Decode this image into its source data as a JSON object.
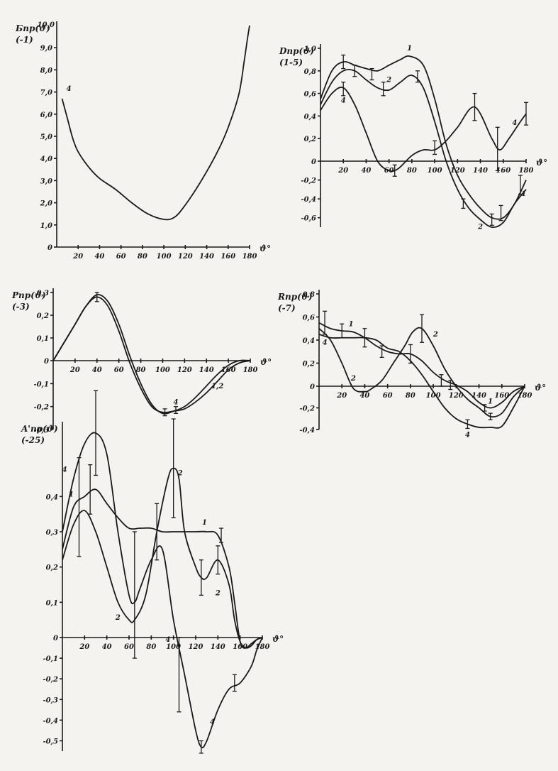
{
  "chart_data": [
    {
      "type": "line",
      "ylabel": "Бпр(ϑ)",
      "ylabel_note": "(-1)",
      "ymax_label": "10,0",
      "xlabel": "ϑ°",
      "x_ticks": [
        "20",
        "40",
        "60",
        "80",
        "100",
        "120",
        "140",
        "160",
        "180"
      ],
      "y_ticks": [
        "0",
        "1,0",
        "2,0",
        "3,0",
        "4,0",
        "5,0",
        "6,0",
        "7,0",
        "8,0",
        "9,0"
      ],
      "xlim": [
        0,
        180
      ],
      "ylim": [
        0,
        10
      ],
      "series": [
        {
          "name": "4",
          "x": [
            5,
            10,
            15,
            20,
            30,
            40,
            55,
            70,
            85,
            100,
            110,
            120,
            135,
            150,
            160,
            170,
            175,
            178,
            180
          ],
          "y": [
            6.7,
            5.8,
            4.9,
            4.3,
            3.6,
            3.1,
            2.6,
            2.0,
            1.5,
            1.25,
            1.35,
            1.9,
            3.0,
            4.3,
            5.4,
            6.9,
            8.4,
            9.4,
            10.0
          ]
        }
      ],
      "error_bars": []
    },
    {
      "type": "line",
      "ylabel": "Dпр(ϑ)",
      "ylabel_note": "(1-5)",
      "xlabel": "ϑ°",
      "x_ticks": [
        "20",
        "40",
        "60",
        "80",
        "100",
        "120",
        "140",
        "160",
        "180"
      ],
      "y_ticks": [
        "-0,6",
        "-0,4",
        "-0,2",
        "0",
        "0,2",
        "0,4",
        "0,6",
        "0,8",
        "1,0"
      ],
      "xlim": [
        0,
        180
      ],
      "ylim": [
        -0.7,
        1.0
      ],
      "series": [
        {
          "name": "1",
          "x": [
            0,
            10,
            20,
            30,
            40,
            50,
            60,
            70,
            78,
            90,
            100,
            110,
            120,
            130,
            140,
            150,
            160,
            170,
            180
          ],
          "y": [
            0.55,
            0.8,
            0.88,
            0.85,
            0.82,
            0.8,
            0.85,
            0.9,
            0.93,
            0.85,
            0.55,
            0.15,
            -0.15,
            -0.35,
            -0.5,
            -0.6,
            -0.6,
            -0.45,
            -0.2
          ]
        },
        {
          "name": "2",
          "x": [
            0,
            10,
            20,
            30,
            40,
            50,
            60,
            70,
            80,
            90,
            100,
            110,
            120,
            130,
            140,
            150,
            160,
            170,
            180
          ],
          "y": [
            0.5,
            0.7,
            0.8,
            0.8,
            0.72,
            0.65,
            0.63,
            0.7,
            0.76,
            0.65,
            0.35,
            0.0,
            -0.3,
            -0.5,
            -0.62,
            -0.7,
            -0.65,
            -0.45,
            -0.3
          ]
        },
        {
          "name": "4",
          "x": [
            0,
            10,
            20,
            30,
            40,
            50,
            60,
            68,
            80,
            90,
            100,
            110,
            120,
            135,
            150,
            157,
            165,
            175,
            180
          ],
          "y": [
            0.45,
            0.6,
            0.65,
            0.5,
            0.25,
            0.0,
            -0.1,
            -0.08,
            0.05,
            0.1,
            0.1,
            0.18,
            0.3,
            0.48,
            0.2,
            0.1,
            0.2,
            0.35,
            0.42
          ]
        }
      ],
      "error_bars": [
        {
          "x": 20,
          "y": 0.88,
          "e": 0.06
        },
        {
          "x": 30,
          "y": 0.8,
          "e": 0.05
        },
        {
          "x": 45,
          "y": 0.77,
          "e": 0.05
        },
        {
          "x": 55,
          "y": 0.64,
          "e": 0.06
        },
        {
          "x": 85,
          "y": 0.75,
          "e": 0.05
        },
        {
          "x": 20,
          "y": 0.64,
          "e": 0.06
        },
        {
          "x": 65,
          "y": -0.1,
          "e": 0.06
        },
        {
          "x": 100,
          "y": 0.12,
          "e": 0.06
        },
        {
          "x": 125,
          "y": -0.45,
          "e": 0.05
        },
        {
          "x": 135,
          "y": 0.48,
          "e": 0.12
        },
        {
          "x": 150,
          "y": -0.62,
          "e": 0.06
        },
        {
          "x": 155,
          "y": 0.1,
          "e": 0.2
        },
        {
          "x": 158,
          "y": -0.55,
          "e": 0.08
        },
        {
          "x": 175,
          "y": -0.25,
          "e": 0.1
        },
        {
          "x": 180,
          "y": 0.42,
          "e": 0.1
        }
      ],
      "curve_labels": [
        {
          "text": "1",
          "x": 78,
          "y": 0.98
        },
        {
          "text": "2",
          "x": 60,
          "y": 0.7
        },
        {
          "text": "4",
          "x": 20,
          "y": 0.52
        },
        {
          "text": "4",
          "x": 170,
          "y": 0.32
        },
        {
          "text": "2",
          "x": 140,
          "y": -0.72
        },
        {
          "text": "1",
          "x": 178,
          "y": -0.37
        }
      ]
    },
    {
      "type": "line",
      "ylabel": "Pпр(ϑ)",
      "ylabel_note": "(-3)",
      "xlabel": "ϑ°",
      "x_ticks": [
        "20",
        "40",
        "60",
        "80",
        "100",
        "120",
        "140",
        "160",
        "180"
      ],
      "y_ticks": [
        "-0,3",
        "-0,2",
        "-0,1",
        "0",
        "0,1",
        "0,2",
        "0,3"
      ],
      "xlim": [
        0,
        180
      ],
      "ylim": [
        -0.3,
        0.3
      ],
      "series": [
        {
          "name": "1,2",
          "x": [
            0,
            10,
            20,
            30,
            40,
            50,
            60,
            70,
            80,
            90,
            100,
            110,
            120,
            130,
            140,
            150,
            160,
            170,
            180
          ],
          "y": [
            0,
            0.08,
            0.16,
            0.24,
            0.29,
            0.26,
            0.16,
            0.02,
            -0.1,
            -0.19,
            -0.23,
            -0.22,
            -0.2,
            -0.16,
            -0.11,
            -0.06,
            -0.02,
            0,
            0
          ]
        },
        {
          "name": "4",
          "x": [
            0,
            10,
            20,
            30,
            40,
            50,
            60,
            70,
            80,
            90,
            100,
            110,
            120,
            130,
            140,
            150,
            160,
            170,
            180
          ],
          "y": [
            0,
            0.08,
            0.16,
            0.24,
            0.28,
            0.24,
            0.13,
            -0.01,
            -0.12,
            -0.2,
            -0.225,
            -0.22,
            -0.21,
            -0.18,
            -0.14,
            -0.09,
            -0.04,
            -0.01,
            0
          ]
        }
      ],
      "error_bars": [
        {
          "x": 40,
          "y": 0.28,
          "e": 0.02
        },
        {
          "x": 102,
          "y": -0.225,
          "e": 0.015
        },
        {
          "x": 112,
          "y": -0.215,
          "e": 0.015
        }
      ],
      "curve_labels": [
        {
          "text": "4",
          "x": 112,
          "y": -0.19
        },
        {
          "text": "1,2",
          "x": 150,
          "y": -0.12
        }
      ]
    },
    {
      "type": "line",
      "ylabel": "Rпр(ϑ)",
      "ylabel_note": "(-7)",
      "xlabel": "ϑ°",
      "x_ticks": [
        "20",
        "40",
        "60",
        "80",
        "100",
        "120",
        "140",
        "160",
        "180"
      ],
      "y_ticks": [
        "-0,4",
        "-0,2",
        "0",
        "0,2",
        "0,4",
        "0,6",
        "0,8"
      ],
      "xlim": [
        0,
        180
      ],
      "ylim": [
        -0.4,
        0.8
      ],
      "series": [
        {
          "name": "1",
          "x": [
            0,
            10,
            20,
            30,
            40,
            50,
            60,
            70,
            80,
            90,
            100,
            110,
            120,
            130,
            140,
            150,
            160,
            170,
            180
          ],
          "y": [
            0.55,
            0.5,
            0.48,
            0.47,
            0.42,
            0.35,
            0.3,
            0.28,
            0.28,
            0.22,
            0.12,
            0.05,
            0.01,
            -0.05,
            -0.15,
            -0.2,
            -0.15,
            -0.05,
            0
          ]
        },
        {
          "name": "2",
          "x": [
            0,
            10,
            20,
            30,
            40,
            45,
            55,
            65,
            75,
            82,
            90,
            100,
            110,
            120,
            130,
            140,
            150,
            160,
            170,
            180
          ],
          "y": [
            0.5,
            0.4,
            0.2,
            -0.02,
            -0.05,
            -0.03,
            0.05,
            0.2,
            0.35,
            0.47,
            0.5,
            0.35,
            0.15,
            0.0,
            -0.12,
            -0.2,
            -0.28,
            -0.25,
            -0.1,
            0
          ]
        },
        {
          "name": "4",
          "x": [
            0,
            10,
            20,
            30,
            40,
            50,
            60,
            70,
            80,
            90,
            100,
            110,
            120,
            130,
            140,
            150,
            160,
            170,
            180
          ],
          "y": [
            0.45,
            0.42,
            0.42,
            0.42,
            0.42,
            0.4,
            0.33,
            0.3,
            0.22,
            0.1,
            -0.05,
            -0.2,
            -0.3,
            -0.35,
            -0.38,
            -0.38,
            -0.37,
            -0.2,
            0
          ]
        }
      ],
      "error_bars": [
        {
          "x": 5,
          "y": 0.55,
          "e": 0.1
        },
        {
          "x": 20,
          "y": 0.48,
          "e": 0.06
        },
        {
          "x": 40,
          "y": 0.42,
          "e": 0.08
        },
        {
          "x": 55,
          "y": 0.3,
          "e": 0.05
        },
        {
          "x": 80,
          "y": 0.28,
          "e": 0.08
        },
        {
          "x": 90,
          "y": 0.5,
          "e": 0.12
        },
        {
          "x": 107,
          "y": 0.05,
          "e": 0.05
        },
        {
          "x": 115,
          "y": 0.01,
          "e": 0.04
        },
        {
          "x": 130,
          "y": -0.35,
          "e": 0.04
        },
        {
          "x": 145,
          "y": -0.2,
          "e": 0.03
        },
        {
          "x": 150,
          "y": -0.28,
          "e": 0.03
        }
      ],
      "curve_labels": [
        {
          "text": "1",
          "x": 28,
          "y": 0.52
        },
        {
          "text": "2",
          "x": 30,
          "y": 0.05
        },
        {
          "text": "4",
          "x": 5,
          "y": 0.36
        },
        {
          "text": "2",
          "x": 102,
          "y": 0.43
        },
        {
          "text": "1",
          "x": 150,
          "y": -0.16
        },
        {
          "text": "4",
          "x": 130,
          "y": -0.47
        }
      ]
    },
    {
      "type": "line",
      "ylabel": "A'пр(ϑ)",
      "ylabel_note": "(-25)",
      "xlabel": "ϑ°",
      "x_ticks": [
        "20",
        "40",
        "60",
        "80",
        "100",
        "120",
        "140",
        "160",
        "180"
      ],
      "y_ticks": [
        "-0,5",
        "-0,4",
        "-0,3",
        "-0,2",
        "-0,1",
        "0",
        "0,1",
        "0,2",
        "0,3",
        "0,4"
      ],
      "xlim": [
        0,
        180
      ],
      "ylim": [
        -0.55,
        0.6
      ],
      "series": [
        {
          "name": "1",
          "x": [
            0,
            10,
            20,
            30,
            40,
            50,
            60,
            70,
            80,
            90,
            100,
            110,
            120,
            130,
            140,
            150,
            155,
            160,
            165,
            170,
            175,
            180
          ],
          "y": [
            0.25,
            0.37,
            0.4,
            0.42,
            0.38,
            0.34,
            0.31,
            0.31,
            0.31,
            0.3,
            0.3,
            0.3,
            0.3,
            0.3,
            0.29,
            0.2,
            0.1,
            -0.02,
            -0.05,
            -0.03,
            -0.01,
            0
          ]
        },
        {
          "name": "2",
          "x": [
            0,
            10,
            20,
            30,
            40,
            50,
            60,
            65,
            75,
            85,
            95,
            100,
            105,
            110,
            120,
            125,
            130,
            140,
            150,
            155,
            160,
            165,
            170,
            175,
            180
          ],
          "y": [
            0.22,
            0.32,
            0.36,
            0.3,
            0.2,
            0.1,
            0.05,
            0.05,
            0.12,
            0.3,
            0.45,
            0.48,
            0.45,
            0.3,
            0.2,
            0.17,
            0.17,
            0.22,
            0.15,
            0.05,
            -0.02,
            -0.05,
            -0.04,
            -0.01,
            0
          ]
        },
        {
          "name": "4",
          "x": [
            0,
            10,
            20,
            30,
            40,
            50,
            60,
            65,
            70,
            80,
            90,
            100,
            110,
            120,
            125,
            130,
            140,
            150,
            160,
            170,
            175,
            180
          ],
          "y": [
            0.3,
            0.45,
            0.55,
            0.58,
            0.52,
            0.3,
            0.12,
            0.1,
            0.14,
            0.22,
            0.25,
            0.05,
            -0.18,
            -0.45,
            -0.53,
            -0.5,
            -0.35,
            -0.25,
            -0.22,
            -0.14,
            -0.06,
            0
          ]
        }
      ],
      "error_bars": [
        {
          "x": 15,
          "y": 0.37,
          "e": 0.14
        },
        {
          "x": 30,
          "y": 0.58,
          "e": 0.12
        },
        {
          "x": 25,
          "y": 0.42,
          "e": 0.07
        },
        {
          "x": 65,
          "y": 0.1,
          "e": 0.2
        },
        {
          "x": 85,
          "y": 0.3,
          "e": 0.08
        },
        {
          "x": 100,
          "y": 0.48,
          "e": 0.14
        },
        {
          "x": 125,
          "y": -0.53,
          "e": 0.03
        },
        {
          "x": 105,
          "y": -0.18,
          "e": 0.18
        },
        {
          "x": 125,
          "y": 0.17,
          "e": 0.05
        },
        {
          "x": 140,
          "y": 0.22,
          "e": 0.04
        },
        {
          "x": 143,
          "y": 0.29,
          "e": 0.02
        },
        {
          "x": 155,
          "y": -0.22,
          "e": 0.04
        }
      ],
      "curve_labels": [
        {
          "text": "4",
          "x": 2,
          "y": 0.47
        },
        {
          "text": "1",
          "x": 8,
          "y": 0.4
        },
        {
          "text": "2",
          "x": 50,
          "y": 0.05
        },
        {
          "text": "2",
          "x": 106,
          "y": 0.46
        },
        {
          "text": "1",
          "x": 128,
          "y": 0.32
        },
        {
          "text": "4",
          "x": 95,
          "y": -0.02
        },
        {
          "text": "2",
          "x": 140,
          "y": 0.12
        },
        {
          "text": "4",
          "x": 135,
          "y": -0.42
        }
      ]
    }
  ]
}
